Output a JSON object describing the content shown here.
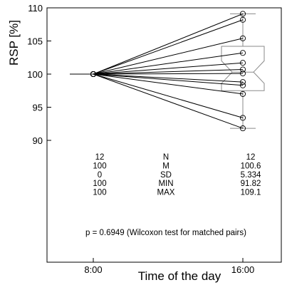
{
  "chart_data": {
    "type": "line",
    "title": "",
    "xlabel": "Time of the day",
    "ylabel": "RSP [%]",
    "categories": [
      "8:00",
      "16:00"
    ],
    "ylim": [
      88,
      110
    ],
    "y_ticks": [
      90,
      95,
      100,
      105,
      110
    ],
    "grid": false,
    "series": [
      {
        "values": [
          100,
          109.1
        ]
      },
      {
        "values": [
          100,
          108.2
        ]
      },
      {
        "values": [
          100,
          105.4
        ]
      },
      {
        "values": [
          100,
          103.2
        ]
      },
      {
        "values": [
          100,
          101.7
        ]
      },
      {
        "values": [
          100,
          100.7
        ]
      },
      {
        "values": [
          100,
          100.1
        ]
      },
      {
        "values": [
          100,
          98.8
        ]
      },
      {
        "values": [
          100,
          98.3
        ]
      },
      {
        "values": [
          100,
          97.0
        ]
      },
      {
        "values": [
          100,
          93.4
        ]
      },
      {
        "values": [
          100,
          91.82
        ]
      }
    ],
    "boxplot_16": {
      "min": 91.82,
      "q1": 97.5,
      "median": 100.3,
      "q3": 104.2,
      "max": 109.1,
      "notch_low": 98.6,
      "notch_high": 102.0
    },
    "stats_table": {
      "rows": [
        {
          "left": "12",
          "label": "N",
          "right": "12"
        },
        {
          "left": "100",
          "label": "M",
          "right": "100.6"
        },
        {
          "left": "0",
          "label": "SD",
          "right": "5.334"
        },
        {
          "left": "100",
          "label": "MIN",
          "right": "91.82"
        },
        {
          "left": "100",
          "label": "MAX",
          "right": "109.1"
        }
      ]
    },
    "annotation": "p = 0.6949 (Wilcoxon test for matched pairs)"
  }
}
